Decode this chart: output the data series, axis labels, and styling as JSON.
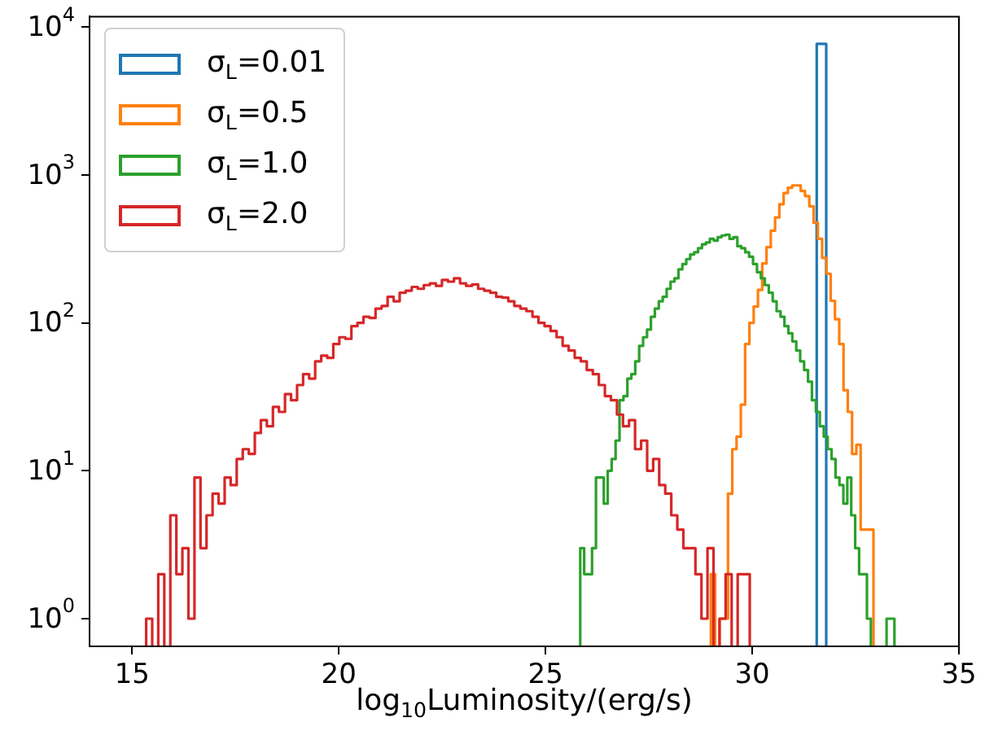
{
  "chart_data": {
    "type": "step",
    "xlabel": "log$_{10}$Luminosity/(erg/s)",
    "log": true,
    "grid": false,
    "legend": "top left",
    "xlim": [
      13.97,
      35
    ],
    "xticks": [
      15,
      20,
      25,
      30,
      35
    ],
    "ylim": [
      0.65,
      11770
    ],
    "yticks": [
      {
        "value": 1,
        "label": "10$^{0}$"
      },
      {
        "value": 10,
        "label": "10$^{1}$"
      },
      {
        "value": 100,
        "label": "10$^{2}$"
      },
      {
        "value": 1000,
        "label": "10$^{3}$"
      },
      {
        "value": 10000,
        "label": "10$^{4}$"
      }
    ],
    "series": [
      {
        "name": "σ$_{L}$=0.01",
        "color": "#1f77b4",
        "x": [
          31.56,
          31.67,
          31.79
        ],
        "values": [
          2500,
          7700,
          7700
        ]
      },
      {
        "name": "σ$_{L}$=0.5",
        "color": "#ff7f0e",
        "x": [
          29,
          29.1035,
          29.207,
          29.3105,
          29.414,
          29.5175,
          29.621,
          29.7245,
          29.828,
          29.9315,
          30.035,
          30.1385,
          30.242,
          30.3455,
          30.449,
          30.5525,
          30.656,
          30.7595,
          30.863,
          30.9665,
          31.07,
          31.1735,
          31.277,
          31.3805,
          31.484,
          31.5875,
          31.691,
          31.7945,
          31.898,
          32.0015,
          32.105,
          32.2085,
          32.312,
          32.4155,
          32.519,
          32.6225,
          32.726,
          32.8295,
          32.933
        ],
        "values": [
          2,
          2,
          null,
          1,
          1,
          7,
          14,
          17,
          28,
          72,
          100,
          129,
          167,
          252,
          325,
          420,
          516,
          635,
          755,
          820,
          850,
          850,
          780,
          720,
          615,
          475,
          370,
          275,
          215,
          141,
          106,
          72,
          35,
          25,
          13,
          15,
          4,
          4,
          4
        ]
      },
      {
        "name": "σ$_{L}$=1.0",
        "color": "#2ca02c",
        "x": [
          25.84,
          25.935,
          26.03,
          26.125,
          26.22,
          26.315,
          26.41,
          26.505,
          26.6,
          26.695,
          26.79,
          26.885,
          26.98,
          27.075,
          27.17,
          27.265,
          27.36,
          27.455,
          27.55,
          27.645,
          27.74,
          27.835,
          27.93,
          28.025,
          28.12,
          28.215,
          28.31,
          28.405,
          28.5,
          28.595,
          28.69,
          28.785,
          28.88,
          28.975,
          29.07,
          29.165,
          29.26,
          29.355,
          29.45,
          29.545,
          29.64,
          29.735,
          29.83,
          29.925,
          30.02,
          30.115,
          30.21,
          30.305,
          30.4,
          30.495,
          30.59,
          30.685,
          30.78,
          30.875,
          30.97,
          31.065,
          31.16,
          31.255,
          31.35,
          31.445,
          31.54,
          31.635,
          31.73,
          31.825,
          31.92,
          32.015,
          32.11,
          32.205,
          32.3,
          32.395,
          32.49,
          32.585,
          32.68,
          32.775,
          32.87,
          32.965,
          33.06,
          33.155,
          33.25,
          33.345,
          33.44
        ],
        "values": [
          2,
          3,
          2,
          2,
          3,
          9,
          9,
          6,
          10,
          12,
          16,
          30,
          32,
          42,
          45,
          55,
          70,
          80,
          90,
          110,
          125,
          140,
          150,
          170,
          190,
          200,
          230,
          250,
          270,
          290,
          300,
          320,
          340,
          350,
          370,
          360,
          380,
          390,
          395,
          370,
          380,
          330,
          320,
          300,
          280,
          250,
          220,
          200,
          180,
          160,
          140,
          120,
          110,
          95,
          85,
          75,
          65,
          55,
          48,
          40,
          30,
          25,
          20,
          17,
          14,
          12,
          9,
          8,
          6,
          9,
          5,
          3,
          2,
          2,
          1,
          null,
          null,
          null,
          null,
          1,
          1
        ]
      },
      {
        "name": "σ$_{L}$=2.0",
        "color": "#d62728",
        "x": [
          15.34,
          15.486,
          15.632,
          15.778,
          15.924,
          16.07,
          16.216,
          16.362,
          16.508,
          16.654,
          16.8,
          16.946,
          17.092,
          17.238,
          17.384,
          17.53,
          17.676,
          17.822,
          17.968,
          18.114,
          18.26,
          18.406,
          18.552,
          18.698,
          18.844,
          18.99,
          19.136,
          19.282,
          19.428,
          19.574,
          19.72,
          19.866,
          20.012,
          20.158,
          20.304,
          20.45,
          20.596,
          20.742,
          20.888,
          21.034,
          21.18,
          21.326,
          21.472,
          21.618,
          21.764,
          21.91,
          22.056,
          22.202,
          22.348,
          22.494,
          22.64,
          22.786,
          22.932,
          23.078,
          23.224,
          23.37,
          23.516,
          23.662,
          23.808,
          23.954,
          24.1,
          24.246,
          24.392,
          24.538,
          24.684,
          24.83,
          24.976,
          25.122,
          25.268,
          25.414,
          25.56,
          25.706,
          25.852,
          25.998,
          26.144,
          26.29,
          26.436,
          26.582,
          26.728,
          26.874,
          27.02,
          27.166,
          27.312,
          27.458,
          27.604,
          27.75,
          27.896,
          28.042,
          28.188,
          28.334,
          28.48,
          28.626,
          28.772,
          28.918,
          29.064,
          29.21,
          29.356,
          29.502,
          29.648,
          29.794,
          29.94
        ],
        "values": [
          1,
          1,
          null,
          2,
          null,
          5,
          2,
          3,
          1,
          9,
          3,
          5,
          7,
          6,
          9,
          8,
          12,
          14,
          13,
          18,
          22,
          20,
          27,
          25,
          33,
          30,
          38,
          45,
          42,
          55,
          60,
          58,
          72,
          80,
          78,
          95,
          100,
          110,
          108,
          125,
          130,
          150,
          140,
          160,
          165,
          175,
          170,
          180,
          185,
          178,
          195,
          190,
          200,
          185,
          178,
          182,
          170,
          165,
          160,
          150,
          148,
          140,
          130,
          125,
          120,
          110,
          100,
          95,
          88,
          80,
          70,
          65,
          58,
          55,
          48,
          45,
          38,
          32,
          30,
          24,
          20,
          22,
          14,
          16,
          10,
          12,
          8,
          7,
          5,
          4,
          3,
          3,
          2,
          1,
          3,
          null,
          1,
          2,
          null,
          2,
          2
        ]
      }
    ]
  }
}
